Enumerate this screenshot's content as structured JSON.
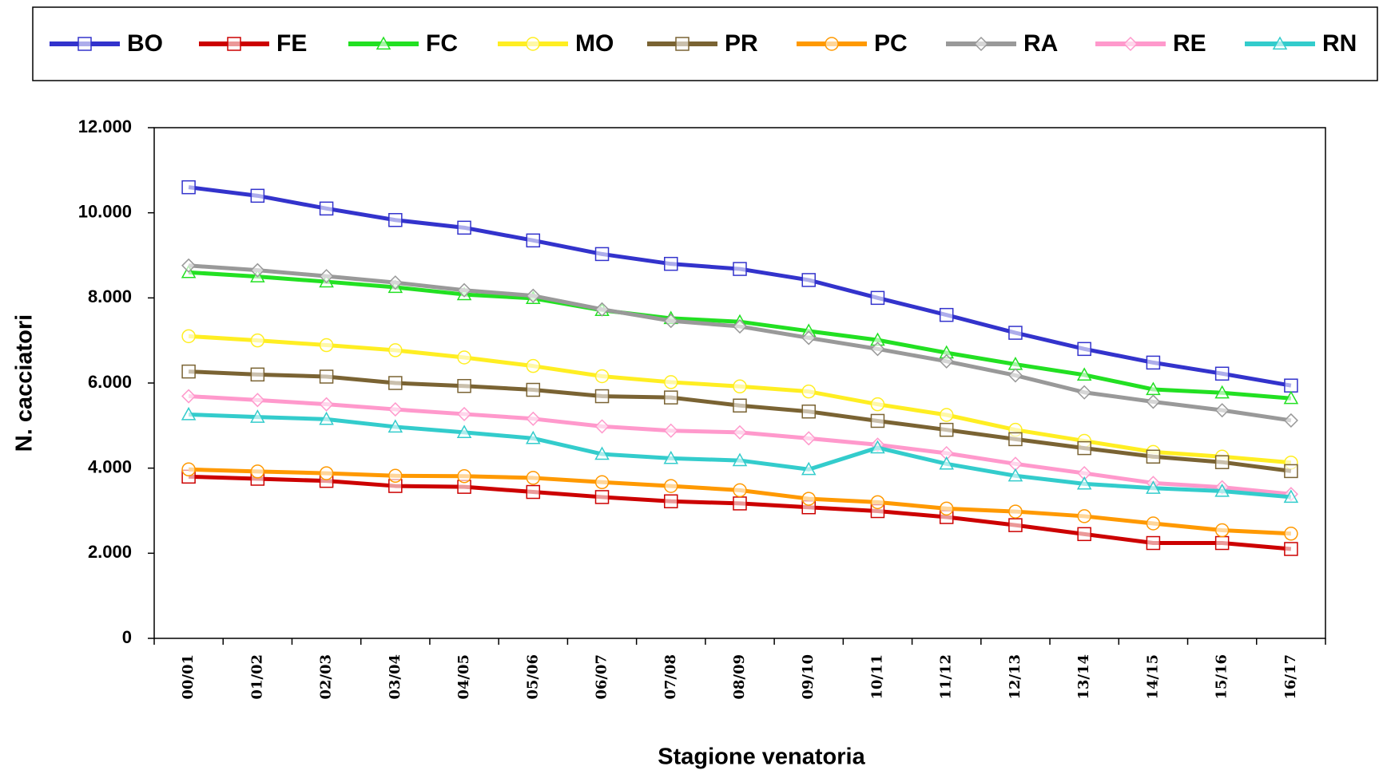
{
  "chart_data": {
    "type": "line",
    "x_label": "Stagione venatoria",
    "y_label": "N. cacciatori",
    "categories": [
      "00/01",
      "01/02",
      "02/03",
      "03/04",
      "04/05",
      "05/06",
      "06/07",
      "07/08",
      "08/09",
      "09/10",
      "10/11",
      "11/12",
      "12/13",
      "13/14",
      "14/15",
      "15/16",
      "16/17"
    ],
    "ylim": [
      0,
      12000
    ],
    "yticks": [
      0,
      {
        "value": 2000,
        "label": "2.000"
      },
      {
        "value": 4000,
        "label": "4.000"
      },
      {
        "value": 6000,
        "label": "6.000"
      },
      {
        "value": 8000,
        "label": "8.000"
      },
      {
        "value": 10000,
        "label": "10.000"
      },
      {
        "value": 12000,
        "label": "12.000"
      }
    ],
    "grid": false,
    "legend": "top",
    "series": [
      {
        "name": "BO",
        "color": "#3333cc",
        "marker": "square",
        "values": [
          10600,
          10400,
          10100,
          9830,
          9650,
          9350,
          9030,
          8800,
          8680,
          8420,
          8000,
          7600,
          7180,
          6800,
          6480,
          6220,
          5940
        ]
      },
      {
        "name": "FE",
        "color": "#cc0000",
        "marker": "square",
        "values": [
          3800,
          3750,
          3700,
          3580,
          3560,
          3440,
          3320,
          3220,
          3170,
          3080,
          2990,
          2850,
          2660,
          2450,
          2240,
          2240,
          2100
        ]
      },
      {
        "name": "FC",
        "color": "#22e022",
        "marker": "triangle",
        "values": [
          8600,
          8500,
          8380,
          8250,
          8080,
          7990,
          7710,
          7520,
          7440,
          7220,
          7010,
          6710,
          6440,
          6190,
          5850,
          5770,
          5640
        ]
      },
      {
        "name": "MO",
        "color": "#ffee22",
        "marker": "circle",
        "values": [
          7100,
          7000,
          6890,
          6770,
          6600,
          6400,
          6160,
          6020,
          5920,
          5800,
          5500,
          5250,
          4900,
          4640,
          4380,
          4270,
          4130
        ]
      },
      {
        "name": "PR",
        "color": "#7a6333",
        "marker": "square",
        "values": [
          6270,
          6200,
          6150,
          6000,
          5930,
          5840,
          5690,
          5660,
          5470,
          5330,
          5110,
          4900,
          4680,
          4470,
          4270,
          4140,
          3930
        ]
      },
      {
        "name": "PC",
        "color": "#ff9900",
        "marker": "circle",
        "values": [
          3970,
          3920,
          3880,
          3820,
          3810,
          3770,
          3670,
          3580,
          3480,
          3280,
          3200,
          3050,
          2980,
          2870,
          2700,
          2540,
          2460
        ]
      },
      {
        "name": "RA",
        "color": "#999999",
        "marker": "diamond",
        "values": [
          8760,
          8650,
          8510,
          8360,
          8180,
          8050,
          7730,
          7460,
          7330,
          7060,
          6800,
          6510,
          6180,
          5780,
          5560,
          5360,
          5120
        ]
      },
      {
        "name": "RE",
        "color": "#ff99cc",
        "marker": "diamond",
        "values": [
          5690,
          5600,
          5500,
          5380,
          5270,
          5160,
          4980,
          4880,
          4840,
          4700,
          4550,
          4350,
          4100,
          3880,
          3650,
          3550,
          3390
        ]
      },
      {
        "name": "RN",
        "color": "#33cccc",
        "marker": "triangle",
        "values": [
          5260,
          5200,
          5150,
          4970,
          4840,
          4700,
          4330,
          4230,
          4180,
          3970,
          4480,
          4100,
          3820,
          3630,
          3530,
          3460,
          3320
        ]
      }
    ]
  }
}
